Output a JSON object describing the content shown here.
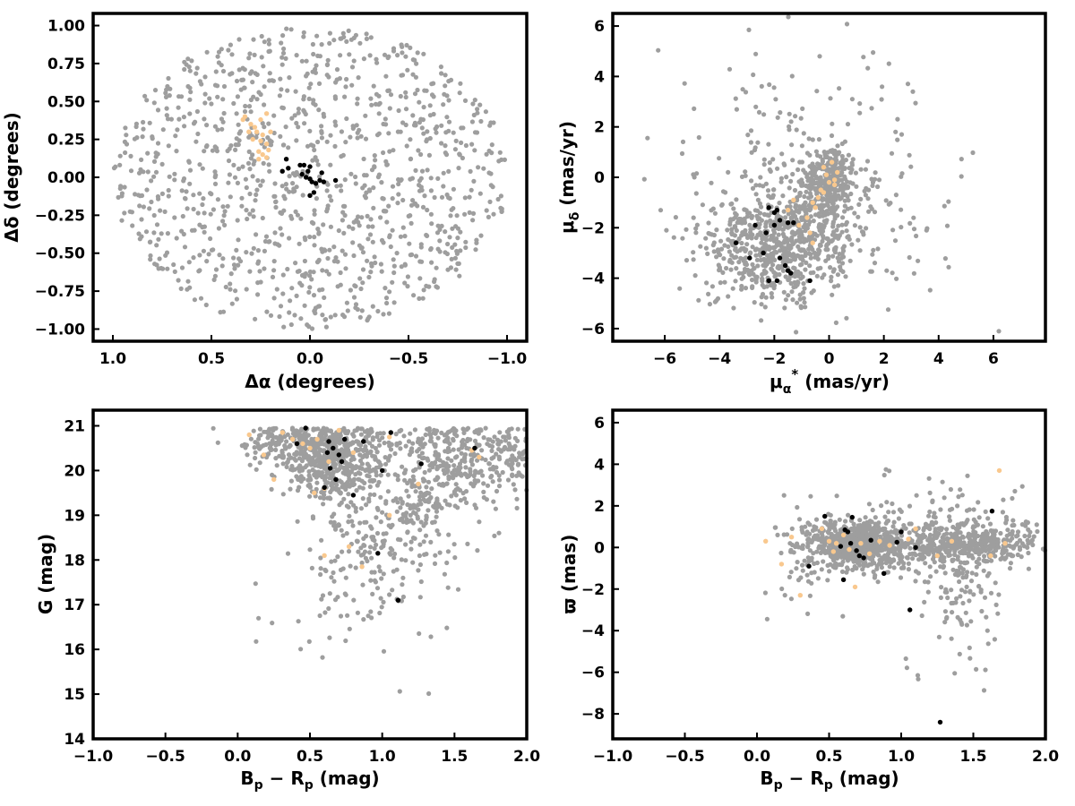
{
  "figure": {
    "background": "#ffffff"
  },
  "colors": {
    "field": "#9e9e9e",
    "group_a": "#000000",
    "group_b": "#f9c88e"
  },
  "chart_data": [
    {
      "id": "sky",
      "type": "scatter",
      "xlabel": "Δα (degrees)",
      "ylabel": "Δδ (degrees)",
      "xlim": [
        1.1,
        -1.1
      ],
      "ylim": [
        -1.08,
        1.08
      ],
      "xticks": [
        1.0,
        0.5,
        0.0,
        -0.5,
        -1.0
      ],
      "xticklabels": [
        "1.0",
        "0.5",
        "0.0",
        "−0.5",
        "−1.0"
      ],
      "yticks": [
        -1.0,
        -0.75,
        -0.5,
        -0.25,
        0.0,
        0.25,
        0.5,
        0.75,
        1.0
      ],
      "yticklabels": [
        "−1.00",
        "−0.75",
        "−0.50",
        "−0.25",
        "0.00",
        "0.25",
        "0.50",
        "0.75",
        "1.00"
      ],
      "grid": false,
      "series": [
        {
          "role": "field",
          "color": "#9e9e9e",
          "dist": {
            "kind": "disk",
            "cx": 0.0,
            "cy": 0.0,
            "r": 1.0,
            "n": 1100,
            "seed": 11
          }
        },
        {
          "role": "group_b",
          "color": "#f9c88e",
          "points": [
            [
              0.22,
              0.42
            ],
            [
              0.25,
              0.38
            ],
            [
              0.28,
              0.33
            ],
            [
              0.3,
              0.35
            ],
            [
              0.33,
              0.4
            ],
            [
              0.34,
              0.38
            ],
            [
              0.2,
              0.3
            ],
            [
              0.24,
              0.28
            ],
            [
              0.27,
              0.3
            ],
            [
              0.22,
              0.22
            ],
            [
              0.25,
              0.24
            ],
            [
              0.21,
              0.18
            ],
            [
              0.24,
              0.15
            ],
            [
              0.26,
              0.17
            ],
            [
              0.22,
              0.13
            ],
            [
              0.29,
              0.25
            ],
            [
              0.31,
              0.3
            ],
            [
              0.26,
              0.12
            ]
          ]
        },
        {
          "role": "group_a",
          "color": "#000000",
          "points": [
            [
              0.14,
              0.04
            ],
            [
              0.11,
              0.06
            ],
            [
              0.12,
              0.12
            ],
            [
              0.05,
              0.08
            ],
            [
              0.03,
              0.08
            ],
            [
              0.0,
              0.07
            ],
            [
              0.01,
              0.04
            ],
            [
              0.04,
              0.02
            ],
            [
              0.02,
              0.0
            ],
            [
              0.0,
              -0.01
            ],
            [
              -0.01,
              -0.03
            ],
            [
              -0.03,
              -0.04
            ],
            [
              -0.05,
              -0.02
            ],
            [
              -0.07,
              -0.03
            ],
            [
              -0.06,
              0.03
            ],
            [
              -0.13,
              -0.02
            ],
            [
              0.0,
              -0.12
            ],
            [
              -0.02,
              -0.1
            ]
          ]
        }
      ]
    },
    {
      "id": "pm",
      "type": "scatter",
      "xlabel": "μα* (mas/yr)",
      "ylabel": "μδ (mas/yr)",
      "xlim": [
        -7.9,
        7.9
      ],
      "ylim": [
        -6.5,
        6.5
      ],
      "xticks": [
        -6,
        -4,
        -2,
        0,
        2,
        4,
        6
      ],
      "xticklabels": [
        "−6",
        "−4",
        "−2",
        "0",
        "2",
        "4",
        "6"
      ],
      "yticks": [
        -6,
        -4,
        -2,
        0,
        2,
        4,
        6
      ],
      "yticklabels": [
        "−6",
        "−4",
        "−2",
        "0",
        "2",
        "4",
        "6"
      ],
      "grid": false,
      "series": [
        {
          "role": "field",
          "color": "#9e9e9e",
          "dist": {
            "kind": "blobs",
            "seed": 22,
            "blobs": [
              {
                "cx": -2.2,
                "cy": -2.8,
                "sx": 1.2,
                "sy": 1.0,
                "n": 550
              },
              {
                "cx": 0.0,
                "cy": -0.1,
                "sx": 0.45,
                "sy": 0.6,
                "n": 260
              },
              {
                "cx": -0.4,
                "cy": -1.5,
                "sx": 0.7,
                "sy": 1.0,
                "n": 150
              },
              {
                "cx": -0.5,
                "cy": -0.5,
                "sx": 2.4,
                "sy": 2.4,
                "n": 300
              }
            ]
          }
        },
        {
          "role": "group_b",
          "color": "#f9c88e",
          "points": [
            [
              -0.2,
              0.4
            ],
            [
              -0.1,
              0.1
            ],
            [
              0.0,
              -0.2
            ],
            [
              0.1,
              0.6
            ],
            [
              -0.5,
              -1.2
            ],
            [
              -0.6,
              -2.6
            ],
            [
              -0.8,
              -1.6
            ],
            [
              -0.4,
              -0.8
            ],
            [
              -1.1,
              -1.9
            ],
            [
              0.2,
              -0.3
            ],
            [
              -1.3,
              -0.9
            ],
            [
              -0.3,
              -0.5
            ],
            [
              -0.6,
              -1.0
            ],
            [
              -0.2,
              -0.6
            ],
            [
              0.3,
              0.2
            ],
            [
              -0.7,
              -2.2
            ],
            [
              -1.5,
              -1.3
            ],
            [
              0.2,
              -0.1
            ]
          ]
        },
        {
          "role": "group_a",
          "color": "#000000",
          "points": [
            [
              -2.2,
              -1.2
            ],
            [
              -2.0,
              -1.4
            ],
            [
              -1.9,
              -1.3
            ],
            [
              -1.8,
              -1.7
            ],
            [
              -2.0,
              -1.9
            ],
            [
              -1.5,
              -1.8
            ],
            [
              -1.3,
              -1.8
            ],
            [
              -2.3,
              -2.2
            ],
            [
              -2.7,
              -1.9
            ],
            [
              -3.4,
              -2.6
            ],
            [
              -2.9,
              -3.2
            ],
            [
              -1.8,
              -3.2
            ],
            [
              -1.6,
              -3.5
            ],
            [
              -1.5,
              -3.7
            ],
            [
              -1.4,
              -3.8
            ],
            [
              -2.2,
              -4.1
            ],
            [
              -1.9,
              -4.1
            ],
            [
              -0.7,
              -4.1
            ],
            [
              -2.4,
              -3.0
            ]
          ]
        }
      ]
    },
    {
      "id": "cmd",
      "type": "scatter",
      "xlabel": "Bp − Rp (mag)",
      "ylabel": "G (mag)",
      "xlim": [
        -1.0,
        2.0
      ],
      "ylim": [
        14.0,
        21.35
      ],
      "xticks": [
        -1.0,
        -0.5,
        0.0,
        0.5,
        1.0,
        1.5,
        2.0
      ],
      "xticklabels": [
        "−1.0",
        "−0.5",
        "0.0",
        "0.5",
        "1.0",
        "1.5",
        "2.0"
      ],
      "yticks": [
        14,
        15,
        16,
        17,
        18,
        19,
        20,
        21
      ],
      "yticklabels": [
        "14",
        "15",
        "16",
        "17",
        "18",
        "19",
        "20",
        "21"
      ],
      "grid": false,
      "series": [
        {
          "role": "field",
          "color": "#9e9e9e",
          "dist": {
            "kind": "blobs",
            "seed": 33,
            "ymax": 20.95,
            "blobs": [
              {
                "cx": 0.65,
                "cy": 20.3,
                "sx": 0.17,
                "sy": 0.45,
                "n": 520
              },
              {
                "cx": 1.5,
                "cy": 20.2,
                "sx": 0.25,
                "sy": 0.6,
                "n": 320
              },
              {
                "cx": 0.9,
                "cy": 18.6,
                "sx": 0.22,
                "sy": 1.0,
                "n": 180
              },
              {
                "cx": 1.3,
                "cy": 19.3,
                "sx": 0.2,
                "sy": 0.8,
                "n": 120
              },
              {
                "cx": 0.35,
                "cy": 20.6,
                "sx": 0.2,
                "sy": 0.3,
                "n": 120
              },
              {
                "cx": 0.9,
                "cy": 17.0,
                "sx": 0.45,
                "sy": 1.1,
                "n": 40
              },
              {
                "cx": 1.9,
                "cy": 20.4,
                "sx": 0.1,
                "sy": 0.35,
                "n": 50
              }
            ]
          }
        },
        {
          "role": "group_b",
          "color": "#f9c88e",
          "points": [
            [
              0.08,
              20.8
            ],
            [
              0.18,
              20.35
            ],
            [
              0.25,
              19.8
            ],
            [
              0.31,
              20.85
            ],
            [
              0.38,
              20.7
            ],
            [
              0.45,
              20.6
            ],
            [
              0.5,
              20.5
            ],
            [
              0.55,
              20.7
            ],
            [
              0.53,
              19.5
            ],
            [
              0.6,
              19.6
            ],
            [
              0.63,
              20.2
            ],
            [
              0.7,
              20.9
            ],
            [
              0.8,
              20.4
            ],
            [
              0.6,
              18.1
            ],
            [
              0.77,
              18.3
            ],
            [
              0.86,
              17.85
            ],
            [
              1.05,
              20.75
            ],
            [
              1.05,
              19.0
            ],
            [
              1.25,
              19.7
            ],
            [
              1.62,
              20.45
            ],
            [
              1.67,
              20.3
            ]
          ]
        },
        {
          "role": "group_a",
          "color": "#000000",
          "points": [
            [
              0.41,
              20.6
            ],
            [
              0.47,
              20.95
            ],
            [
              0.6,
              19.62
            ],
            [
              0.62,
              20.4
            ],
            [
              0.63,
              20.65
            ],
            [
              0.64,
              20.05
            ],
            [
              0.66,
              20.5
            ],
            [
              0.68,
              19.8
            ],
            [
              0.7,
              20.35
            ],
            [
              0.72,
              20.2
            ],
            [
              0.74,
              20.7
            ],
            [
              0.8,
              19.45
            ],
            [
              0.87,
              20.65
            ],
            [
              0.97,
              18.15
            ],
            [
              1.0,
              20.0
            ],
            [
              1.06,
              20.85
            ],
            [
              1.11,
              17.1
            ],
            [
              1.27,
              20.15
            ],
            [
              1.64,
              20.5
            ]
          ]
        }
      ]
    },
    {
      "id": "parallax",
      "type": "scatter",
      "xlabel": "Bp − Rp (mag)",
      "ylabel": "ϖ (mas)",
      "xlim": [
        -1.0,
        2.0
      ],
      "ylim": [
        -9.2,
        6.6
      ],
      "xticks": [
        -1.0,
        -0.5,
        0.0,
        0.5,
        1.0,
        1.5,
        2.0
      ],
      "xticklabels": [
        "−1.0",
        "−0.5",
        "0.0",
        "0.5",
        "1.0",
        "1.5",
        "2.0"
      ],
      "yticks": [
        -8,
        -6,
        -4,
        -2,
        0,
        2,
        4,
        6
      ],
      "yticklabels": [
        "−8",
        "−6",
        "−4",
        "−2",
        "0",
        "2",
        "4",
        "6"
      ],
      "grid": false,
      "series": [
        {
          "role": "field",
          "color": "#9e9e9e",
          "dist": {
            "kind": "blobs",
            "seed": 44,
            "blobs": [
              {
                "cx": 0.7,
                "cy": 0.1,
                "sx": 0.18,
                "sy": 0.55,
                "n": 700
              },
              {
                "cx": 1.5,
                "cy": 0.2,
                "sx": 0.25,
                "sy": 0.55,
                "n": 350
              },
              {
                "cx": 1.1,
                "cy": 0.0,
                "sx": 0.2,
                "sy": 0.9,
                "n": 120
              },
              {
                "cx": 1.45,
                "cy": -2.0,
                "sx": 0.12,
                "sy": 1.3,
                "n": 80
              },
              {
                "cx": 0.35,
                "cy": -0.3,
                "sx": 0.15,
                "sy": 1.3,
                "n": 60
              },
              {
                "cx": 1.3,
                "cy": 1.8,
                "sx": 0.3,
                "sy": 1.2,
                "n": 60
              },
              {
                "cx": 1.5,
                "cy": -5.0,
                "sx": 0.15,
                "sy": 1.0,
                "n": 10
              },
              {
                "cx": 1.05,
                "cy": -5.5,
                "sx": 0.05,
                "sy": 0.8,
                "n": 4
              }
            ]
          }
        },
        {
          "role": "group_b",
          "color": "#f9c88e",
          "points": [
            [
              0.06,
              0.3
            ],
            [
              0.17,
              -0.8
            ],
            [
              0.24,
              0.5
            ],
            [
              0.3,
              -2.3
            ],
            [
              0.45,
              0.9
            ],
            [
              0.5,
              0.3
            ],
            [
              0.53,
              -0.2
            ],
            [
              0.55,
              0.2
            ],
            [
              0.6,
              0.6
            ],
            [
              0.64,
              -0.1
            ],
            [
              0.68,
              -1.9
            ],
            [
              0.72,
              0.2
            ],
            [
              0.78,
              -0.3
            ],
            [
              0.85,
              0.3
            ],
            [
              0.92,
              0.1
            ],
            [
              1.05,
              0.4
            ],
            [
              1.1,
              0.9
            ],
            [
              1.25,
              -0.4
            ],
            [
              1.35,
              0.3
            ],
            [
              1.62,
              -0.4
            ],
            [
              1.68,
              3.7
            ],
            [
              1.72,
              0.2
            ]
          ]
        },
        {
          "role": "group_a",
          "color": "#000000",
          "points": [
            [
              0.36,
              -0.9
            ],
            [
              0.47,
              1.5
            ],
            [
              0.58,
              0.05
            ],
            [
              0.6,
              -1.55
            ],
            [
              0.61,
              0.85
            ],
            [
              0.63,
              0.75
            ],
            [
              0.65,
              0.2
            ],
            [
              0.66,
              1.45
            ],
            [
              0.69,
              -0.15
            ],
            [
              0.71,
              -0.4
            ],
            [
              0.74,
              -0.5
            ],
            [
              0.79,
              0.35
            ],
            [
              0.88,
              -1.25
            ],
            [
              0.97,
              0.25
            ],
            [
              1.0,
              0.75
            ],
            [
              1.06,
              -3.0
            ],
            [
              1.1,
              0.0
            ],
            [
              1.27,
              -8.4
            ],
            [
              1.63,
              1.75
            ]
          ]
        }
      ]
    }
  ]
}
